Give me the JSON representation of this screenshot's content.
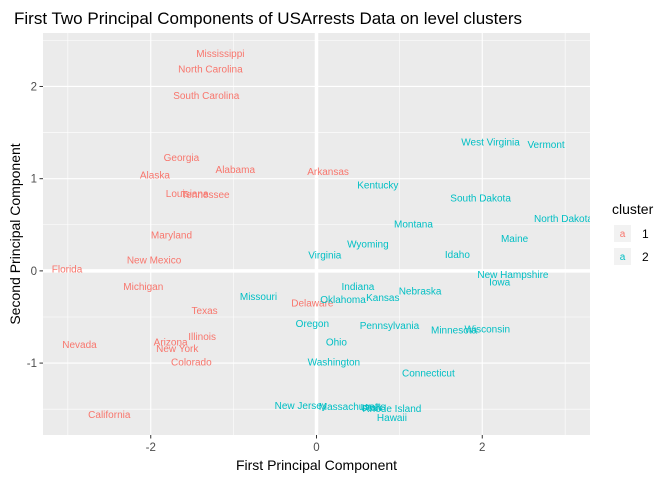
{
  "chart_data": {
    "type": "scatter",
    "title": "First Two Principal Components of USArrests Data on level clusters",
    "xlabel": "First Principal Component",
    "ylabel": "Second Principal Component",
    "xlim": [
      -3.3,
      3.3
    ],
    "ylim": [
      -1.78,
      2.58
    ],
    "xticks": [
      -2,
      0,
      2
    ],
    "xtick_labels": [
      "-2",
      "0",
      "2"
    ],
    "yticks": [
      -1,
      0,
      1,
      2
    ],
    "ytick_labels": [
      "-1",
      "0",
      "1",
      "2"
    ],
    "grid": true,
    "zero_lines": true,
    "legend": {
      "title": "cluster",
      "position": "right",
      "glyph": "a"
    },
    "series": [
      {
        "name": "1",
        "color": "#F8766D",
        "points": [
          {
            "label": "Mississippi",
            "x": -1.16,
            "y": 2.36
          },
          {
            "label": "North Carolina",
            "x": -1.28,
            "y": 2.19
          },
          {
            "label": "South Carolina",
            "x": -1.33,
            "y": 1.9
          },
          {
            "label": "Georgia",
            "x": -1.63,
            "y": 1.23
          },
          {
            "label": "Alabama",
            "x": -0.98,
            "y": 1.1
          },
          {
            "label": "Alaska",
            "x": -1.95,
            "y": 1.04
          },
          {
            "label": "Arkansas",
            "x": 0.14,
            "y": 1.08
          },
          {
            "label": "Louisiana",
            "x": -1.56,
            "y": 0.84
          },
          {
            "label": "Tennessee",
            "x": -1.34,
            "y": 0.83
          },
          {
            "label": "Maryland",
            "x": -1.75,
            "y": 0.39
          },
          {
            "label": "Florida",
            "x": -3.01,
            "y": 0.02
          },
          {
            "label": "New Mexico",
            "x": -1.96,
            "y": 0.12
          },
          {
            "label": "Michigan",
            "x": -2.09,
            "y": -0.17
          },
          {
            "label": "Texas",
            "x": -1.35,
            "y": -0.43
          },
          {
            "label": "Delaware",
            "x": -0.05,
            "y": -0.35
          },
          {
            "label": "Illinois",
            "x": -1.38,
            "y": -0.71
          },
          {
            "label": "Arizona",
            "x": -1.76,
            "y": -0.77
          },
          {
            "label": "Nevada",
            "x": -2.86,
            "y": -0.8
          },
          {
            "label": "New York",
            "x": -1.68,
            "y": -0.84
          },
          {
            "label": "Colorado",
            "x": -1.51,
            "y": -0.99
          },
          {
            "label": "California",
            "x": -2.5,
            "y": -1.56
          }
        ]
      },
      {
        "name": "2",
        "color": "#00BFC4",
        "points": [
          {
            "label": "West Virginia",
            "x": 2.1,
            "y": 1.4
          },
          {
            "label": "Vermont",
            "x": 2.77,
            "y": 1.37
          },
          {
            "label": "Kentucky",
            "x": 0.74,
            "y": 0.93
          },
          {
            "label": "South Dakota",
            "x": 1.98,
            "y": 0.79
          },
          {
            "label": "North Dakota",
            "x": 2.98,
            "y": 0.57
          },
          {
            "label": "Montana",
            "x": 1.17,
            "y": 0.51
          },
          {
            "label": "Maine",
            "x": 2.39,
            "y": 0.35
          },
          {
            "label": "Wyoming",
            "x": 0.62,
            "y": 0.29
          },
          {
            "label": "Idaho",
            "x": 1.7,
            "y": 0.18
          },
          {
            "label": "Virginia",
            "x": 0.1,
            "y": 0.17
          },
          {
            "label": "New Hampshire",
            "x": 2.37,
            "y": -0.04
          },
          {
            "label": "Iowa",
            "x": 2.21,
            "y": -0.12
          },
          {
            "label": "Indiana",
            "x": 0.5,
            "y": -0.17
          },
          {
            "label": "Nebraska",
            "x": 1.25,
            "y": -0.22
          },
          {
            "label": "Missouri",
            "x": -0.7,
            "y": -0.28
          },
          {
            "label": "Kansas",
            "x": 0.8,
            "y": -0.29
          },
          {
            "label": "Oklahoma",
            "x": 0.32,
            "y": -0.31
          },
          {
            "label": "Oregon",
            "x": -0.05,
            "y": -0.57
          },
          {
            "label": "Pennsylvania",
            "x": 0.88,
            "y": -0.59
          },
          {
            "label": "Wisconsin",
            "x": 2.06,
            "y": -0.63
          },
          {
            "label": "Minnesota",
            "x": 1.66,
            "y": -0.64
          },
          {
            "label": "Ohio",
            "x": 0.24,
            "y": -0.77
          },
          {
            "label": "Washington",
            "x": 0.21,
            "y": -0.99
          },
          {
            "label": "Connecticut",
            "x": 1.35,
            "y": -1.11
          },
          {
            "label": "New Jersey",
            "x": -0.19,
            "y": -1.46
          },
          {
            "label": "Massachusetts",
            "x": 0.43,
            "y": -1.47
          },
          {
            "label": "Utah",
            "x": 0.66,
            "y": -1.48
          },
          {
            "label": "Rhode Island",
            "x": 0.91,
            "y": -1.49
          },
          {
            "label": "Hawaii",
            "x": 0.91,
            "y": -1.59
          }
        ]
      }
    ]
  }
}
